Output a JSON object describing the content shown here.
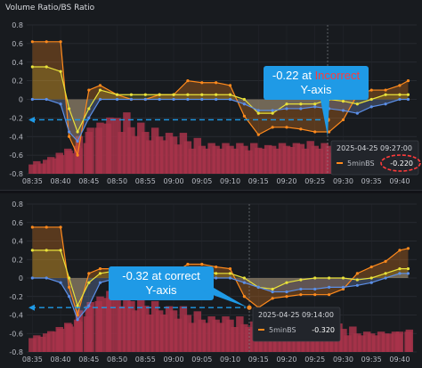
{
  "panels": [
    {
      "title": "Volume Ratio/BS Ratio",
      "annotation": {
        "line1_prefix": "-0.22 at ",
        "line1_highlight": "Incorrect",
        "line2": "Y-axis"
      },
      "tooltip": {
        "time": "2025-04-25 09:27:00",
        "series": "5minBS",
        "value": "-0.220"
      }
    },
    {
      "title": "",
      "annotation": {
        "line1_prefix": "-0.32 at correct",
        "line1_highlight": "",
        "line2": "Y-axis"
      },
      "tooltip": {
        "time": "2025-04-25 09:14:00",
        "series": "5minBS",
        "value": "-0.320"
      }
    }
  ],
  "colors": {
    "accent_annotation": "#1f9ae6",
    "incorrect": "#ff3b3b",
    "bar": "#a8324a",
    "orange": "#ff8a1c",
    "yellow": "#e9e23a",
    "blue": "#5b8fe8"
  },
  "chart_data": [
    {
      "type": "line",
      "y_ticks": [
        "0.8",
        "0.6",
        "0.4",
        "0.2",
        "0",
        "-0.2",
        "-0.4",
        "-0.6",
        "-0.8"
      ],
      "x_ticks": [
        "08:35",
        "08:40",
        "08:45",
        "08:50",
        "08:55",
        "09:00",
        "09:05",
        "09:10",
        "09:15",
        "09:20",
        "09:25",
        "09:30",
        "09:35",
        "09:40"
      ],
      "ylim": [
        -0.8,
        0.8
      ],
      "points": {
        "x": [
          0,
          0.5,
          1,
          1.3,
          1.6,
          2,
          2.4,
          3,
          3.5,
          4,
          4.5,
          5,
          5.5,
          6,
          6.5,
          7,
          7.5,
          8,
          8.5,
          9,
          9.5,
          10,
          10.5,
          11,
          11.5,
          12,
          12.5,
          13,
          13.3
        ],
        "orange": [
          0.62,
          0.62,
          0.62,
          -0.4,
          -0.6,
          0.1,
          0.15,
          0.05,
          0,
          0,
          0.05,
          0.05,
          0.2,
          0.18,
          0.18,
          0.15,
          -0.18,
          -0.38,
          -0.3,
          -0.3,
          -0.32,
          -0.35,
          -0.35,
          -0.22,
          0.05,
          0.1,
          0.1,
          0.15,
          0.2
        ],
        "yellow": [
          0.35,
          0.35,
          0.3,
          -0.1,
          -0.35,
          -0.1,
          0.1,
          0.05,
          0.05,
          0.05,
          0.05,
          0.05,
          0.05,
          0.05,
          0.05,
          0.05,
          0,
          -0.15,
          -0.15,
          -0.05,
          -0.05,
          -0.05,
          0,
          -0.02,
          -0.05,
          0,
          0.05,
          0.05,
          0.05
        ],
        "blue": [
          0,
          0,
          -0.05,
          -0.35,
          -0.45,
          -0.2,
          0,
          0,
          0,
          0,
          0,
          0,
          0,
          0,
          0,
          0,
          -0.05,
          -0.12,
          -0.12,
          -0.1,
          -0.1,
          -0.08,
          -0.1,
          -0.12,
          -0.15,
          -0.08,
          -0.05,
          0,
          0
        ],
        "bars": [
          0.1,
          0.15,
          0.2,
          0.25,
          0.3,
          0.45,
          0.55,
          0.6,
          0.5,
          0.45,
          0.4,
          0.4,
          0.35,
          0.3,
          0.3,
          0.3,
          0.3,
          0.28,
          0.3,
          0.3,
          0.32,
          0.3,
          0.3,
          0.25,
          0.2,
          0.15,
          0.15,
          0.2,
          0.2
        ]
      },
      "highlight_value": -0.22
    },
    {
      "type": "line",
      "y_ticks": [
        "0.8",
        "0.6",
        "0.4",
        "0.2",
        "0",
        "-0.2",
        "-0.4",
        "-0.6",
        "-0.8"
      ],
      "x_ticks": [
        "08:35",
        "08:40",
        "08:45",
        "08:50",
        "08:55",
        "09:00",
        "09:05",
        "09:10",
        "09:15",
        "09:20",
        "09:25",
        "09:30",
        "09:35",
        "09:40"
      ],
      "ylim": [
        -0.8,
        0.8
      ],
      "points": {
        "x": [
          0,
          0.5,
          1,
          1.3,
          1.6,
          2,
          2.4,
          3,
          3.5,
          4,
          4.5,
          5,
          5.5,
          6,
          6.5,
          7,
          7.5,
          8,
          8.5,
          9,
          9.5,
          10,
          10.5,
          11,
          11.5,
          12,
          12.5,
          13,
          13.3
        ],
        "orange": [
          0.55,
          0.55,
          0.55,
          -0.1,
          -0.4,
          0.05,
          0.1,
          0.1,
          0.05,
          0.05,
          0.05,
          0.05,
          0.15,
          0.15,
          0.12,
          0.1,
          -0.2,
          -0.32,
          -0.22,
          -0.2,
          -0.18,
          -0.18,
          -0.18,
          -0.12,
          0.05,
          0.12,
          0.18,
          0.3,
          0.32
        ],
        "yellow": [
          0.3,
          0.3,
          0.3,
          0,
          -0.3,
          -0.05,
          0.05,
          0.08,
          0.1,
          0.1,
          0.1,
          0.1,
          0.1,
          0.08,
          0.05,
          0.05,
          0,
          -0.1,
          -0.12,
          -0.05,
          -0.02,
          0,
          0,
          0,
          -0.02,
          0,
          0.05,
          0.1,
          0.1
        ],
        "blue": [
          0,
          0,
          -0.05,
          -0.2,
          -0.45,
          -0.3,
          -0.05,
          0,
          0,
          0,
          0,
          0,
          0,
          0,
          0,
          0,
          -0.05,
          -0.1,
          -0.15,
          -0.15,
          -0.12,
          -0.12,
          -0.1,
          -0.1,
          -0.08,
          -0.05,
          0,
          0.05,
          0.05
        ],
        "bars": [
          0.15,
          0.2,
          0.25,
          0.3,
          0.35,
          0.5,
          0.6,
          0.65,
          0.55,
          0.5,
          0.45,
          0.45,
          0.4,
          0.35,
          0.35,
          0.35,
          0.3,
          0.3,
          0.32,
          0.35,
          0.3,
          0.3,
          0.28,
          0.25,
          0.2,
          0.2,
          0.2,
          0.22,
          0.22
        ]
      },
      "highlight_value": -0.32
    }
  ]
}
